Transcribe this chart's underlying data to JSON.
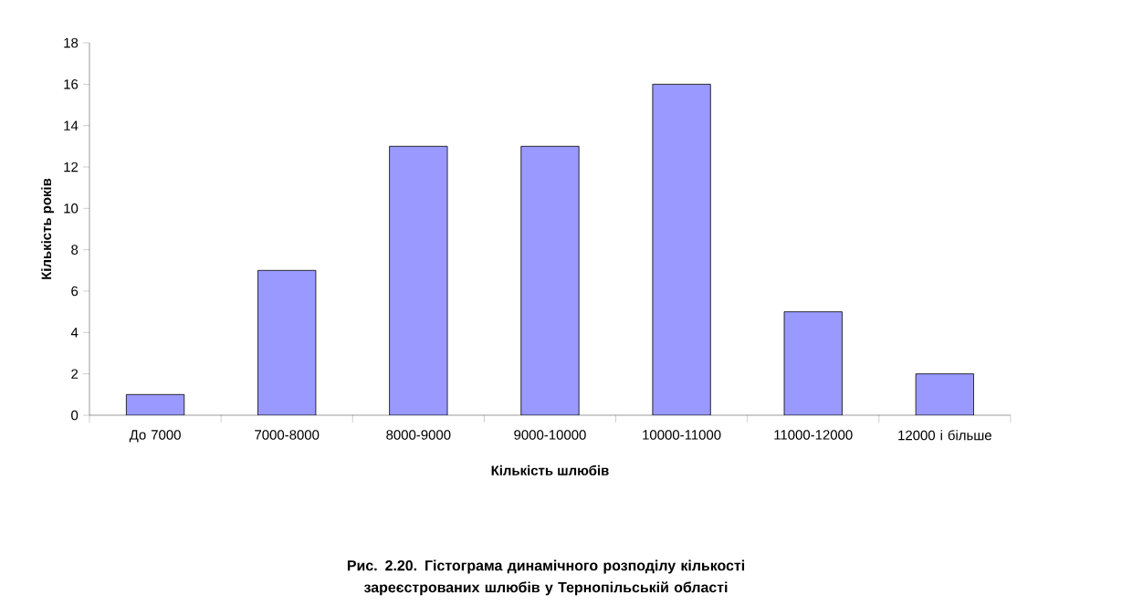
{
  "chart_data": {
    "type": "bar",
    "title": "Рис. 2.20. Гістограма динамічного розподілу кількості зареєстрованих шлюбів у Тернопільській області",
    "xlabel": "Кількість шлюбів",
    "ylabel": "Кількість років",
    "categories": [
      "До 7000",
      "7000-8000",
      "8000-9000",
      "9000-10000",
      "10000-11000",
      "11000-12000",
      "12000 і більше"
    ],
    "values": [
      1,
      7,
      13,
      13,
      16,
      5,
      2
    ],
    "color": "#9999ff",
    "ylim": [
      0,
      18
    ],
    "yticks": [
      0,
      2,
      4,
      6,
      8,
      10,
      12,
      14,
      16,
      18
    ]
  }
}
